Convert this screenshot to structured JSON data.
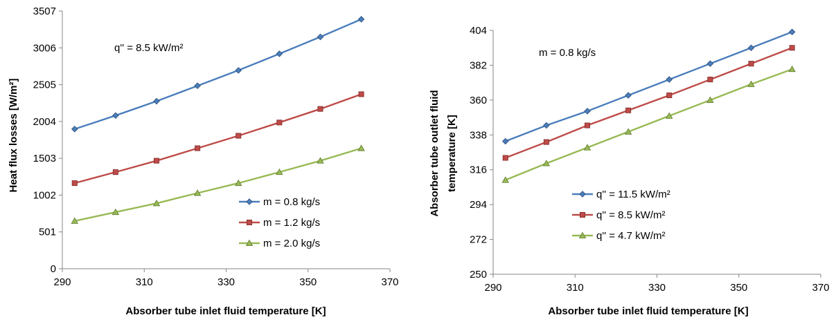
{
  "chart_data": [
    {
      "type": "line",
      "title": "",
      "annotation": "q'' = 8.5 kW/m²",
      "xlabel": "Absorber tube inlet fluid temperature [K]",
      "ylabel": "Heat flux losses [W/m²]",
      "xlim": [
        290,
        370
      ],
      "ylim": [
        0,
        3507
      ],
      "xticks": [
        "290",
        "310",
        "330",
        "350",
        "370"
      ],
      "yticks": [
        "0",
        "501",
        "1002",
        "1503",
        "2004",
        "2505",
        "3006",
        "3507"
      ],
      "grid": false,
      "legend_position": "lower-right",
      "x": [
        293,
        303,
        313,
        323,
        333,
        343,
        353,
        363
      ],
      "series": [
        {
          "name": "m = 0.8 kg/s",
          "color": "#4a7ebb",
          "marker": "diamond",
          "values": [
            1900,
            2085,
            2280,
            2490,
            2700,
            2925,
            3155,
            3395
          ]
        },
        {
          "name": "m = 1.2 kg/s",
          "color": "#be4b48",
          "marker": "square",
          "values": [
            1165,
            1315,
            1470,
            1640,
            1810,
            1990,
            2175,
            2375
          ]
        },
        {
          "name": "m = 2.0 kg/s",
          "color": "#98b954",
          "marker": "triangle",
          "values": [
            650,
            770,
            890,
            1030,
            1165,
            1315,
            1470,
            1640
          ]
        }
      ]
    },
    {
      "type": "line",
      "title": "",
      "annotation": "m = 0.8 kg/s",
      "xlabel": "Absorber tube inlet fluid temperature  [K]",
      "ylabel_line1": "Absorber tube outlet  fluid",
      "ylabel_line2": "temperature  [K]",
      "xlim": [
        290,
        370
      ],
      "ylim": [
        250,
        404
      ],
      "xticks": [
        "290",
        "310",
        "330",
        "350",
        "370"
      ],
      "yticks": [
        "250",
        "272",
        "294",
        "316",
        "338",
        "360",
        "382",
        "404"
      ],
      "grid": false,
      "legend_position": "lower-right",
      "x": [
        293,
        303,
        313,
        323,
        333,
        343,
        353,
        363
      ],
      "series": [
        {
          "name": "q'' = 11.5 kW/m²",
          "color": "#4a7ebb",
          "marker": "diamond",
          "values": [
            334,
            344,
            353,
            363,
            373,
            383,
            393,
            403
          ]
        },
        {
          "name": "q''  =  8.5 kW/m²",
          "color": "#be4b48",
          "marker": "square",
          "values": [
            323.5,
            333.5,
            344,
            353.5,
            363,
            373,
            383,
            393
          ]
        },
        {
          "name": "q''  =   4.7 kW/m²",
          "color": "#98b954",
          "marker": "triangle",
          "values": [
            309.5,
            320,
            330,
            340,
            350,
            360,
            370,
            379.5
          ]
        }
      ]
    }
  ]
}
